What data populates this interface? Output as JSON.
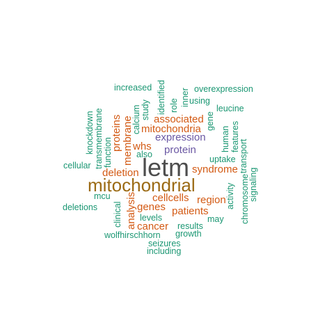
{
  "title": "",
  "colors": {
    "dark": "#4d4d4d",
    "brown": "#9b6a14",
    "purple": "#6a57a3",
    "orange": "#d35a14",
    "teal": "#1b9773"
  },
  "chart_data": {
    "type": "wordcloud",
    "words": [
      {
        "text": "letm",
        "group": "dark",
        "size": "largest",
        "orientation": "horizontal"
      },
      {
        "text": "mitochondrial",
        "group": "brown",
        "size": "large",
        "orientation": "horizontal"
      },
      {
        "text": "expression",
        "group": "purple",
        "size": "medium",
        "orientation": "horizontal"
      },
      {
        "text": "protein",
        "group": "purple",
        "size": "medium",
        "orientation": "horizontal"
      },
      {
        "text": "mitochondria",
        "group": "orange",
        "size": "medium",
        "orientation": "horizontal"
      },
      {
        "text": "associated",
        "group": "orange",
        "size": "medium",
        "orientation": "horizontal"
      },
      {
        "text": "whs",
        "group": "orange",
        "size": "medium",
        "orientation": "horizontal"
      },
      {
        "text": "deletion",
        "group": "orange",
        "size": "medium",
        "orientation": "horizontal"
      },
      {
        "text": "syndrome",
        "group": "orange",
        "size": "medium",
        "orientation": "horizontal"
      },
      {
        "text": "cellcells",
        "group": "orange",
        "size": "medium",
        "orientation": "horizontal"
      },
      {
        "text": "region",
        "group": "orange",
        "size": "medium",
        "orientation": "horizontal"
      },
      {
        "text": "genes",
        "group": "orange",
        "size": "medium",
        "orientation": "horizontal"
      },
      {
        "text": "patients",
        "group": "orange",
        "size": "medium",
        "orientation": "horizontal"
      },
      {
        "text": "cancer",
        "group": "orange",
        "size": "medium",
        "orientation": "horizontal"
      },
      {
        "text": "proteins",
        "group": "orange",
        "size": "medium",
        "orientation": "vertical"
      },
      {
        "text": "membrane",
        "group": "orange",
        "size": "medium",
        "orientation": "vertical"
      },
      {
        "text": "analysis",
        "group": "orange",
        "size": "medium",
        "orientation": "vertical"
      },
      {
        "text": "increased",
        "group": "teal",
        "size": "small",
        "orientation": "horizontal"
      },
      {
        "text": "overexpression",
        "group": "teal",
        "size": "small",
        "orientation": "horizontal"
      },
      {
        "text": "using",
        "group": "teal",
        "size": "small",
        "orientation": "horizontal"
      },
      {
        "text": "leucine",
        "group": "teal",
        "size": "small",
        "orientation": "horizontal"
      },
      {
        "text": "also",
        "group": "teal",
        "size": "small",
        "orientation": "horizontal"
      },
      {
        "text": "cellular",
        "group": "teal",
        "size": "small",
        "orientation": "horizontal"
      },
      {
        "text": "uptake",
        "group": "teal",
        "size": "small",
        "orientation": "horizontal"
      },
      {
        "text": "mcu",
        "group": "teal",
        "size": "small",
        "orientation": "horizontal"
      },
      {
        "text": "deletions",
        "group": "teal",
        "size": "small",
        "orientation": "horizontal"
      },
      {
        "text": "levels",
        "group": "teal",
        "size": "small",
        "orientation": "horizontal"
      },
      {
        "text": "may",
        "group": "teal",
        "size": "small",
        "orientation": "horizontal"
      },
      {
        "text": "results",
        "group": "teal",
        "size": "small",
        "orientation": "horizontal"
      },
      {
        "text": "wolfhirschhorn",
        "group": "teal",
        "size": "small",
        "orientation": "horizontal"
      },
      {
        "text": "growth",
        "group": "teal",
        "size": "small",
        "orientation": "horizontal"
      },
      {
        "text": "seizures",
        "group": "teal",
        "size": "small",
        "orientation": "horizontal"
      },
      {
        "text": "including",
        "group": "teal",
        "size": "small",
        "orientation": "horizontal"
      },
      {
        "text": "knockdown",
        "group": "teal",
        "size": "small",
        "orientation": "vertical"
      },
      {
        "text": "transmembrane",
        "group": "teal",
        "size": "small",
        "orientation": "vertical"
      },
      {
        "text": "function",
        "group": "teal",
        "size": "small",
        "orientation": "vertical"
      },
      {
        "text": "calcium",
        "group": "teal",
        "size": "small",
        "orientation": "vertical"
      },
      {
        "text": "study",
        "group": "teal",
        "size": "small",
        "orientation": "vertical"
      },
      {
        "text": "identified",
        "group": "teal",
        "size": "small",
        "orientation": "vertical"
      },
      {
        "text": "role",
        "group": "teal",
        "size": "small",
        "orientation": "vertical"
      },
      {
        "text": "inner",
        "group": "teal",
        "size": "small",
        "orientation": "vertical"
      },
      {
        "text": "gene",
        "group": "teal",
        "size": "small",
        "orientation": "vertical"
      },
      {
        "text": "human",
        "group": "teal",
        "size": "small",
        "orientation": "vertical"
      },
      {
        "text": "features",
        "group": "teal",
        "size": "small",
        "orientation": "vertical"
      },
      {
        "text": "transport",
        "group": "teal",
        "size": "small",
        "orientation": "vertical"
      },
      {
        "text": "activity",
        "group": "teal",
        "size": "small",
        "orientation": "vertical"
      },
      {
        "text": "chromosome",
        "group": "teal",
        "size": "small",
        "orientation": "vertical"
      },
      {
        "text": "signaling",
        "group": "teal",
        "size": "small",
        "orientation": "vertical"
      },
      {
        "text": "clinical",
        "group": "teal",
        "size": "small",
        "orientation": "vertical"
      }
    ]
  }
}
